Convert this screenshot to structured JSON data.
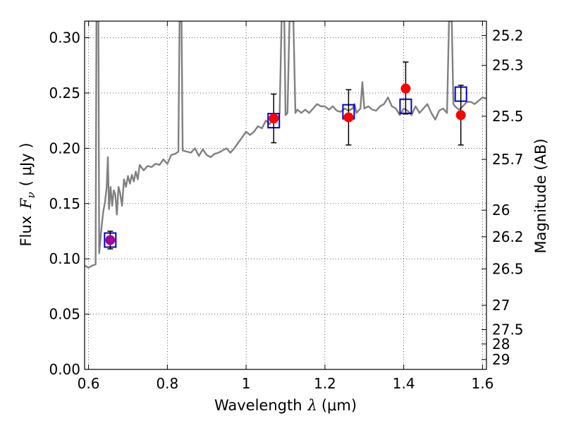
{
  "chart_data": {
    "type": "scatter",
    "title": "",
    "xlabel": {
      "prefix": "Wavelength",
      "symbol": "λ",
      "unit": "(μm)"
    },
    "ylabel": {
      "prefix": "Flux",
      "symbol": "F",
      "subscript": "ν",
      "unit": "( μJy )"
    },
    "y2label": "Magnitude (AB)",
    "xlim": [
      0.59,
      1.61
    ],
    "ylim": [
      0.0,
      0.315
    ],
    "grid": true,
    "x_ticks": [
      {
        "value": 0.6,
        "label": "0.6"
      },
      {
        "value": 0.8,
        "label": "0.8"
      },
      {
        "value": 1.0,
        "label": "1"
      },
      {
        "value": 1.2,
        "label": "1.2"
      },
      {
        "value": 1.4,
        "label": "1.4"
      },
      {
        "value": 1.6,
        "label": "1.6"
      }
    ],
    "y_ticks": [
      {
        "value": 0.0,
        "label": "0.00"
      },
      {
        "value": 0.05,
        "label": "0.05"
      },
      {
        "value": 0.1,
        "label": "0.10"
      },
      {
        "value": 0.15,
        "label": "0.15"
      },
      {
        "value": 0.2,
        "label": "0.20"
      },
      {
        "value": 0.25,
        "label": "0.25"
      },
      {
        "value": 0.3,
        "label": "0.30"
      }
    ],
    "y2_ticks": [
      {
        "label": "25.2",
        "flux": 0.302
      },
      {
        "label": "25.3",
        "flux": 0.275
      },
      {
        "label": "25.5",
        "flux": 0.229
      },
      {
        "label": "25.7",
        "flux": 0.19
      },
      {
        "label": "26",
        "flux": 0.144
      },
      {
        "label": "26.2",
        "flux": 0.12
      },
      {
        "label": "26.5",
        "flux": 0.091
      },
      {
        "label": "27",
        "flux": 0.058
      },
      {
        "label": "27.5",
        "flux": 0.036
      },
      {
        "label": "28",
        "flux": 0.023
      },
      {
        "label": "29",
        "flux": 0.009
      }
    ],
    "colors": {
      "spectrum": "#808080",
      "photometry": "#ff0000",
      "model": "#0000cc",
      "first_point": "#a000a0",
      "errorbar": "#000000"
    },
    "series": [
      {
        "kind": "spectrum",
        "points": [
          [
            0.59,
            0.094
          ],
          [
            0.6,
            0.092
          ],
          [
            0.61,
            0.094
          ],
          [
            0.618,
            0.095
          ],
          [
            0.62,
            0.315
          ],
          [
            0.625,
            0.315
          ],
          [
            0.627,
            0.105
          ],
          [
            0.632,
            0.125
          ],
          [
            0.637,
            0.142
          ],
          [
            0.642,
            0.152
          ],
          [
            0.646,
            0.165
          ],
          [
            0.649,
            0.192
          ],
          [
            0.652,
            0.145
          ],
          [
            0.656,
            0.165
          ],
          [
            0.66,
            0.148
          ],
          [
            0.664,
            0.162
          ],
          [
            0.668,
            0.158
          ],
          [
            0.672,
            0.14
          ],
          [
            0.676,
            0.165
          ],
          [
            0.68,
            0.16
          ],
          [
            0.685,
            0.148
          ],
          [
            0.69,
            0.172
          ],
          [
            0.695,
            0.165
          ],
          [
            0.7,
            0.175
          ],
          [
            0.705,
            0.168
          ],
          [
            0.71,
            0.176
          ],
          [
            0.715,
            0.17
          ],
          [
            0.72,
            0.179
          ],
          [
            0.725,
            0.172
          ],
          [
            0.73,
            0.185
          ],
          [
            0.74,
            0.18
          ],
          [
            0.75,
            0.184
          ],
          [
            0.76,
            0.183
          ],
          [
            0.77,
            0.186
          ],
          [
            0.78,
            0.185
          ],
          [
            0.79,
            0.19
          ],
          [
            0.8,
            0.186
          ],
          [
            0.81,
            0.194
          ],
          [
            0.82,
            0.195
          ],
          [
            0.828,
            0.197
          ],
          [
            0.831,
            0.315
          ],
          [
            0.836,
            0.315
          ],
          [
            0.839,
            0.198
          ],
          [
            0.85,
            0.197
          ],
          [
            0.86,
            0.196
          ],
          [
            0.87,
            0.2
          ],
          [
            0.88,
            0.193
          ],
          [
            0.89,
            0.199
          ],
          [
            0.9,
            0.194
          ],
          [
            0.91,
            0.192
          ],
          [
            0.92,
            0.195
          ],
          [
            0.93,
            0.196
          ],
          [
            0.94,
            0.198
          ],
          [
            0.95,
            0.2
          ],
          [
            0.96,
            0.196
          ],
          [
            0.97,
            0.2
          ],
          [
            0.98,
            0.205
          ],
          [
            0.99,
            0.21
          ],
          [
            1.0,
            0.215
          ],
          [
            1.01,
            0.212
          ],
          [
            1.02,
            0.215
          ],
          [
            1.03,
            0.22
          ],
          [
            1.04,
            0.218
          ],
          [
            1.05,
            0.225
          ],
          [
            1.06,
            0.222
          ],
          [
            1.07,
            0.228
          ],
          [
            1.08,
            0.226
          ],
          [
            1.085,
            0.232
          ],
          [
            1.09,
            0.315
          ],
          [
            1.097,
            0.315
          ],
          [
            1.1,
            0.23
          ],
          [
            1.105,
            0.232
          ],
          [
            1.11,
            0.315
          ],
          [
            1.12,
            0.315
          ],
          [
            1.125,
            0.232
          ],
          [
            1.13,
            0.235
          ],
          [
            1.14,
            0.232
          ],
          [
            1.15,
            0.235
          ],
          [
            1.16,
            0.232
          ],
          [
            1.17,
            0.236
          ],
          [
            1.18,
            0.24
          ],
          [
            1.19,
            0.238
          ],
          [
            1.2,
            0.238
          ],
          [
            1.21,
            0.235
          ],
          [
            1.22,
            0.238
          ],
          [
            1.23,
            0.234
          ],
          [
            1.24,
            0.233
          ],
          [
            1.25,
            0.236
          ],
          [
            1.26,
            0.234
          ],
          [
            1.27,
            0.236
          ],
          [
            1.275,
            0.24
          ],
          [
            1.28,
            0.232
          ],
          [
            1.29,
            0.236
          ],
          [
            1.295,
            0.26
          ],
          [
            1.3,
            0.236
          ],
          [
            1.31,
            0.238
          ],
          [
            1.32,
            0.235
          ],
          [
            1.33,
            0.234
          ],
          [
            1.34,
            0.238
          ],
          [
            1.35,
            0.24
          ],
          [
            1.36,
            0.246
          ],
          [
            1.365,
            0.242
          ],
          [
            1.37,
            0.238
          ],
          [
            1.38,
            0.236
          ],
          [
            1.39,
            0.23
          ],
          [
            1.4,
            0.236
          ],
          [
            1.41,
            0.234
          ],
          [
            1.42,
            0.23
          ],
          [
            1.43,
            0.238
          ],
          [
            1.44,
            0.232
          ],
          [
            1.45,
            0.236
          ],
          [
            1.46,
            0.24
          ],
          [
            1.47,
            0.232
          ],
          [
            1.48,
            0.226
          ],
          [
            1.49,
            0.234
          ],
          [
            1.5,
            0.236
          ],
          [
            1.51,
            0.232
          ],
          [
            1.515,
            0.315
          ],
          [
            1.522,
            0.315
          ],
          [
            1.526,
            0.24
          ],
          [
            1.53,
            0.238
          ],
          [
            1.54,
            0.235
          ],
          [
            1.55,
            0.238
          ],
          [
            1.56,
            0.242
          ],
          [
            1.57,
            0.242
          ],
          [
            1.58,
            0.24
          ],
          [
            1.59,
            0.243
          ],
          [
            1.6,
            0.246
          ],
          [
            1.61,
            0.245
          ]
        ]
      },
      {
        "kind": "photometry",
        "points": [
          {
            "x": 0.655,
            "y": 0.117,
            "err_lo": 0.109,
            "err_hi": 0.125
          },
          {
            "x": 1.07,
            "y": 0.227,
            "err_lo": 0.205,
            "err_hi": 0.249
          },
          {
            "x": 1.26,
            "y": 0.228,
            "err_lo": 0.203,
            "err_hi": 0.253
          },
          {
            "x": 1.405,
            "y": 0.254,
            "err_lo": 0.231,
            "err_hi": 0.278
          },
          {
            "x": 1.545,
            "y": 0.23,
            "err_lo": 0.203,
            "err_hi": 0.257
          }
        ]
      },
      {
        "kind": "model",
        "points": [
          {
            "x": 0.655,
            "y": 0.117
          },
          {
            "x": 1.07,
            "y": 0.225
          },
          {
            "x": 1.26,
            "y": 0.233
          },
          {
            "x": 1.405,
            "y": 0.238
          },
          {
            "x": 1.545,
            "y": 0.249
          }
        ]
      }
    ]
  }
}
